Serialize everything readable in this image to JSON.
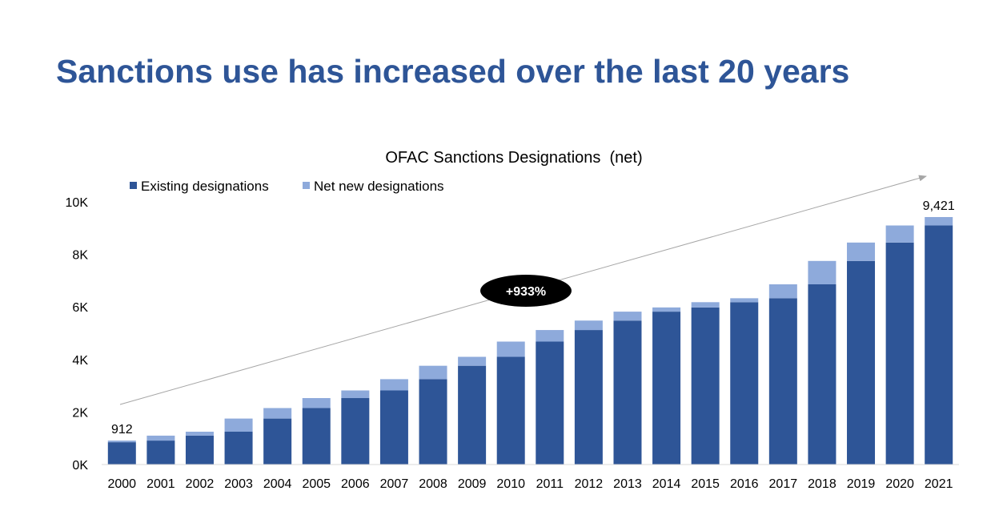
{
  "slide": {
    "title": "Sanctions use has increased over the last 20 years"
  },
  "colors": {
    "title": "#2e5597",
    "existing": "#2e5597",
    "net_new": "#8eaadb",
    "axis_text": "#000000",
    "trend_arrow": "#a6a6a6",
    "callout_bg": "#000000",
    "callout_text": "#ffffff"
  },
  "chart_data": {
    "type": "bar",
    "stacked": true,
    "title": "OFAC Sanctions Designations  (net)",
    "xlabel": "",
    "ylabel": "",
    "ylim": [
      0,
      10000
    ],
    "y_ticks": [
      0,
      2000,
      4000,
      6000,
      8000,
      10000
    ],
    "y_tick_labels": [
      "0K",
      "2K",
      "4K",
      "6K",
      "8K",
      "10K"
    ],
    "grid": false,
    "legend_position": "top-left",
    "categories": [
      "2000",
      "2001",
      "2002",
      "2003",
      "2004",
      "2005",
      "2006",
      "2007",
      "2008",
      "2009",
      "2010",
      "2011",
      "2012",
      "2013",
      "2014",
      "2015",
      "2016",
      "2017",
      "2018",
      "2019",
      "2020",
      "2021"
    ],
    "series": [
      {
        "name": "Existing designations",
        "values": [
          850,
          912,
          1100,
          1250,
          1750,
          2150,
          2530,
          2820,
          3250,
          3760,
          4100,
          4680,
          5120,
          5480,
          5820,
          5980,
          6180,
          6330,
          6860,
          7750,
          8450,
          9100
        ]
      },
      {
        "name": "Net new designations",
        "values": [
          62,
          188,
          150,
          500,
          400,
          380,
          290,
          430,
          510,
          340,
          580,
          440,
          360,
          340,
          160,
          200,
          150,
          530,
          890,
          700,
          650,
          321
        ]
      }
    ],
    "data_labels": [
      {
        "category": "2000",
        "text": "912"
      },
      {
        "category": "2021",
        "text": "9,421"
      }
    ],
    "annotations": [
      {
        "text": "+933%",
        "type": "callout"
      }
    ]
  }
}
